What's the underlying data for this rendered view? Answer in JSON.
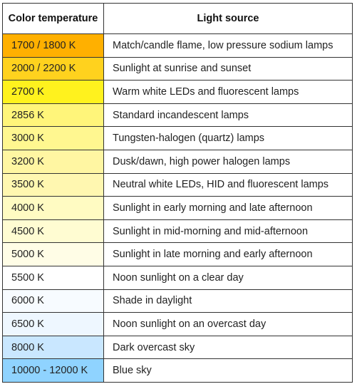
{
  "table": {
    "headers": [
      "Color temperature",
      "Light source"
    ],
    "rows": [
      {
        "temperature": "1700 / 1800 K",
        "source": "Match/candle flame, low pressure sodium lamps",
        "color": "#ffb000"
      },
      {
        "temperature": "2000 / 2200 K",
        "source": "Sunlight at sunrise and sunset",
        "color": "#ffd21e"
      },
      {
        "temperature": "2700 K",
        "source": "Warm white LEDs and fluorescent lamps",
        "color": "#fff21e"
      },
      {
        "temperature": "2856 K",
        "source": "Standard incandescent lamps",
        "color": "#fff57a"
      },
      {
        "temperature": "3000 K",
        "source": "Tungsten-halogen (quartz) lamps",
        "color": "#fff790"
      },
      {
        "temperature": "3200 K",
        "source": "Dusk/dawn, high power halogen lamps",
        "color": "#fff6a2"
      },
      {
        "temperature": "3500 K",
        "source": "Neutral white LEDs, HID and fluorescent lamps",
        "color": "#fff7b0"
      },
      {
        "temperature": "4000 K",
        "source": "Sunlight in early morning and late afternoon",
        "color": "#fffbc2"
      },
      {
        "temperature": "4500 K",
        "source": "Sunlight in mid-morning and mid-afternoon",
        "color": "#fffcd2"
      },
      {
        "temperature": "5000 K",
        "source": "Sunlight in late morning and early afternoon",
        "color": "#fffde6"
      },
      {
        "temperature": "5500 K",
        "source": "Noon sunlight on a clear day",
        "color": "#ffffff"
      },
      {
        "temperature": "6000 K",
        "source": "Shade in daylight",
        "color": "#f7fbff"
      },
      {
        "temperature": "6500 K",
        "source": "Noon sunlight on an overcast day",
        "color": "#eef7ff"
      },
      {
        "temperature": "8000 K",
        "source": "Dark overcast sky",
        "color": "#c9e7ff"
      },
      {
        "temperature": "10000 - 12000 K",
        "source": "Blue sky",
        "color": "#8fd3ff"
      }
    ]
  }
}
